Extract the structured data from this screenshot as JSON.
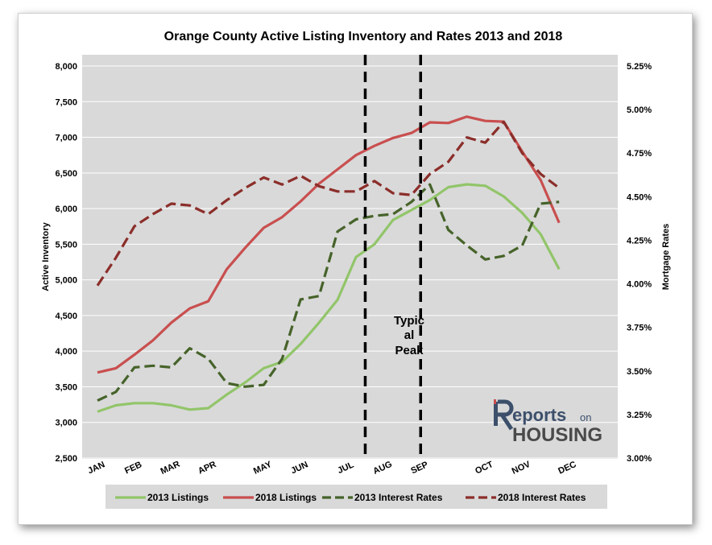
{
  "chart_data": {
    "type": "line",
    "title": "Orange County Active Listing Inventory and Rates 2013 and 2018",
    "ylabel": "Active Inventory",
    "y2label": "Mortgage Rates",
    "ylim": [
      2500,
      8000
    ],
    "y2lim": [
      3.0,
      5.25
    ],
    "yticks": [
      "2,500",
      "3,000",
      "3,500",
      "4,000",
      "4,500",
      "5,000",
      "5,500",
      "6,000",
      "6,500",
      "7,000",
      "7,500",
      "8,000"
    ],
    "y2ticks": [
      "3.00%",
      "3.25%",
      "3.50%",
      "3.75%",
      "4.00%",
      "4.25%",
      "4.50%",
      "4.75%",
      "5.00%",
      "5.25%"
    ],
    "months": [
      "JAN",
      "FEB",
      "MAR",
      "APR",
      "MAY",
      "JUN",
      "JUL",
      "AUG",
      "SEP",
      "OCT",
      "NOV",
      "DEC"
    ],
    "month_positions": [
      0,
      2,
      4,
      6,
      9,
      11,
      13.5,
      15.5,
      17.5,
      21,
      23,
      25.5
    ],
    "x_max": 28,
    "annotation": {
      "lines": [
        "Typic",
        "al",
        "Peak"
      ]
    },
    "peak_lines_x": [
      14.5,
      17.5
    ],
    "series": [
      {
        "name": "2013 Listings",
        "axis": "left",
        "color": "#92c56a",
        "dash": false,
        "values": [
          3150,
          3240,
          3270,
          3270,
          3240,
          3180,
          3200,
          3390,
          3560,
          3760,
          3850,
          4100,
          4400,
          4720,
          5320,
          5500,
          5840,
          5980,
          6120,
          6300,
          6340,
          6320,
          6170,
          5940,
          5640,
          5150
        ]
      },
      {
        "name": "2018 Listings",
        "axis": "left",
        "color": "#c94f4f",
        "dash": false,
        "values": [
          3700,
          3760,
          3950,
          4150,
          4400,
          4600,
          4700,
          5150,
          5450,
          5730,
          5880,
          6100,
          6350,
          6550,
          6750,
          6880,
          6990,
          7060,
          7210,
          7200,
          7290,
          7230,
          7220,
          6800,
          6400,
          5800
        ]
      },
      {
        "name": "2013 Interest Rates",
        "axis": "right",
        "color": "#46632a",
        "dash": true,
        "values": [
          3.33,
          3.38,
          3.52,
          3.53,
          3.52,
          3.63,
          3.57,
          3.43,
          3.41,
          3.42,
          3.57,
          3.91,
          3.93,
          4.3,
          4.37,
          4.39,
          4.4,
          4.47,
          4.57,
          4.31,
          4.22,
          4.14,
          4.16,
          4.22,
          4.46,
          4.47
        ]
      },
      {
        "name": "2018 Interest Rates",
        "axis": "right",
        "color": "#8b2e2a",
        "dash": true,
        "values": [
          3.99,
          4.15,
          4.33,
          4.4,
          4.46,
          4.45,
          4.4,
          4.48,
          4.55,
          4.61,
          4.57,
          4.62,
          4.56,
          4.53,
          4.53,
          4.59,
          4.52,
          4.51,
          4.63,
          4.7,
          4.84,
          4.81,
          4.93,
          4.75,
          4.63,
          4.55
        ]
      }
    ]
  },
  "logo": {
    "text_main": "eports",
    "text_on": "on",
    "text_housing": "HOUSING"
  }
}
